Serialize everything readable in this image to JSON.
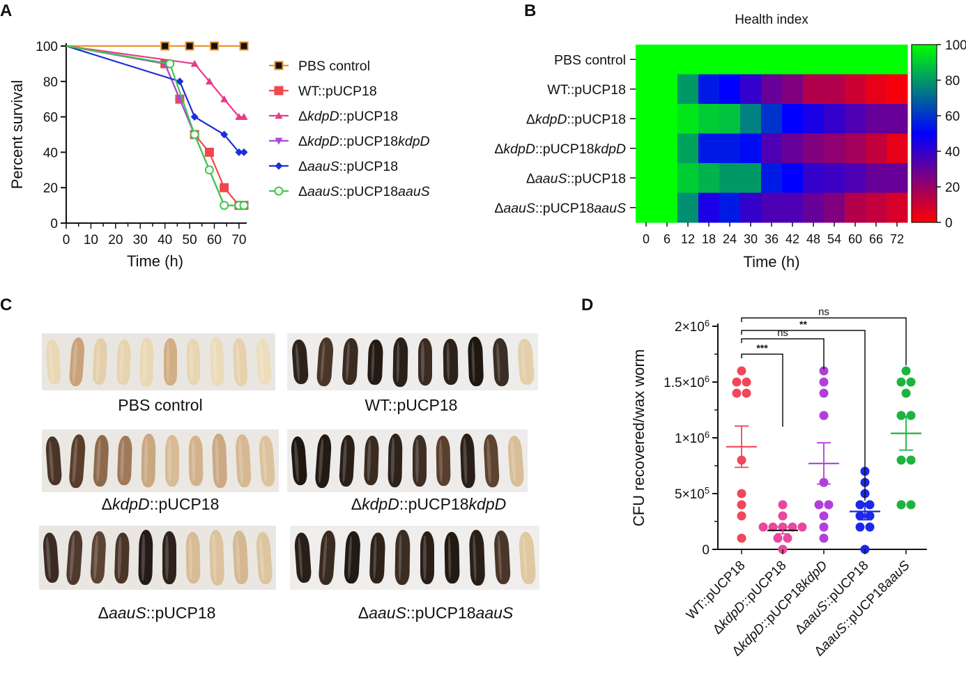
{
  "panels": {
    "a": "A",
    "b": "B",
    "c": "C",
    "d": "D"
  },
  "chart_data": [
    {
      "type": "line",
      "panel": "A",
      "xlabel": "Time (h)",
      "ylabel": "Percent survival",
      "xlim": [
        0,
        72
      ],
      "ylim": [
        0,
        100
      ],
      "xticks": [
        0,
        10,
        20,
        30,
        40,
        50,
        60,
        70
      ],
      "yticks": [
        0,
        20,
        40,
        60,
        80,
        100
      ],
      "legend_position": "right",
      "series": [
        {
          "name": "PBS control",
          "label_parts": [
            {
              "t": "PBS control"
            }
          ],
          "color": "#E8942A",
          "marker": "square-filled",
          "x": [
            0,
            40,
            50,
            60,
            72
          ],
          "y": [
            100,
            100,
            100,
            100,
            100
          ]
        },
        {
          "name": "WT::pUCP18",
          "label_parts": [
            {
              "t": "WT::pUCP18"
            }
          ],
          "color": "#F0474E",
          "marker": "square",
          "x": [
            0,
            40,
            46,
            52,
            58,
            64,
            70,
            72
          ],
          "y": [
            100,
            90,
            70,
            50,
            40,
            20,
            10,
            10
          ]
        },
        {
          "name": "ΔkdpD::pUCP18",
          "label_parts": [
            {
              "t": "Δ"
            },
            {
              "t": "kdpD",
              "i": true
            },
            {
              "t": "::pUCP18"
            }
          ],
          "color": "#E8398A",
          "marker": "triangle-up",
          "x": [
            0,
            52,
            58,
            64,
            70,
            72
          ],
          "y": [
            100,
            90,
            80,
            70,
            60,
            60
          ]
        },
        {
          "name": "ΔkdpD::pUCP18kdpD",
          "label_parts": [
            {
              "t": "Δ"
            },
            {
              "t": "kdpD",
              "i": true
            },
            {
              "t": "::pUCP18"
            },
            {
              "t": "kdpD",
              "i": true
            }
          ],
          "color": "#A64BD6",
          "marker": "triangle-down",
          "x": [
            0,
            40,
            46,
            52,
            58,
            64,
            70,
            72
          ],
          "y": [
            100,
            90,
            70,
            50,
            30,
            10,
            10,
            10
          ]
        },
        {
          "name": "ΔaauS::pUCP18",
          "label_parts": [
            {
              "t": "Δ"
            },
            {
              "t": "aauS",
              "i": true
            },
            {
              "t": "::pUCP18"
            }
          ],
          "color": "#1C2FD6",
          "marker": "diamond",
          "x": [
            0,
            46,
            52,
            64,
            70,
            72
          ],
          "y": [
            100,
            80,
            60,
            50,
            40,
            40
          ]
        },
        {
          "name": "ΔaauS::pUCP18aauS",
          "label_parts": [
            {
              "t": "Δ"
            },
            {
              "t": "aauS",
              "i": true
            },
            {
              "t": "::pUCP18"
            },
            {
              "t": "aauS",
              "i": true
            }
          ],
          "color": "#3CC94B",
          "marker": "circle-open",
          "x": [
            0,
            42,
            52,
            58,
            64,
            70,
            72
          ],
          "y": [
            100,
            90,
            50,
            30,
            10,
            10,
            10
          ]
        }
      ]
    },
    {
      "type": "heatmap",
      "panel": "B",
      "title": "Health index",
      "xlabel": "Time (h)",
      "x": [
        0,
        6,
        12,
        18,
        24,
        30,
        36,
        42,
        48,
        54,
        60,
        66,
        72
      ],
      "rows": [
        {
          "label_parts": [
            {
              "t": "PBS control"
            }
          ],
          "values": [
            100,
            100,
            100,
            100,
            100,
            100,
            100,
            100,
            100,
            100,
            100,
            100,
            100
          ]
        },
        {
          "label_parts": [
            {
              "t": "WT::pUCP18"
            }
          ],
          "values": [
            100,
            100,
            80,
            55,
            50,
            40,
            30,
            25,
            15,
            15,
            10,
            5,
            2
          ]
        },
        {
          "label_parts": [
            {
              "t": "Δ"
            },
            {
              "t": "kdpD",
              "i": true
            },
            {
              "t": "::pUCP18"
            }
          ],
          "values": [
            100,
            100,
            95,
            90,
            88,
            75,
            60,
            50,
            45,
            40,
            35,
            30,
            30
          ]
        },
        {
          "label_parts": [
            {
              "t": "Δ"
            },
            {
              "t": "kdpD",
              "i": true
            },
            {
              "t": "::pUCP18"
            },
            {
              "t": "kdpD",
              "i": true
            }
          ],
          "values": [
            100,
            100,
            82,
            55,
            55,
            52,
            35,
            30,
            25,
            22,
            18,
            12,
            5
          ]
        },
        {
          "label_parts": [
            {
              "t": "Δ"
            },
            {
              "t": "aauS",
              "i": true
            },
            {
              "t": "::pUCP18"
            }
          ],
          "values": [
            100,
            100,
            90,
            85,
            80,
            80,
            55,
            50,
            40,
            38,
            35,
            30,
            30
          ]
        },
        {
          "label_parts": [
            {
              "t": "Δ"
            },
            {
              "t": "aauS",
              "i": true
            },
            {
              "t": "::pUCP18"
            },
            {
              "t": "aauS",
              "i": true
            }
          ],
          "values": [
            100,
            100,
            78,
            45,
            55,
            40,
            35,
            35,
            30,
            25,
            15,
            12,
            8
          ]
        }
      ],
      "colorbar": {
        "range": [
          0,
          100
        ],
        "ticks": [
          0,
          20,
          40,
          60,
          80,
          100
        ],
        "colors": [
          "#FF0000",
          "#0000FF",
          "#00FF00"
        ]
      }
    },
    {
      "type": "scatter",
      "panel": "D",
      "ylabel": "CFU recovered/wax worm",
      "ylim": [
        0,
        2000000
      ],
      "yticks": [
        {
          "v": 0,
          "label": [
            {
              "t": "0"
            }
          ]
        },
        {
          "v": 500000,
          "label": [
            {
              "t": "5×10"
            },
            {
              "t": "5",
              "sup": true
            }
          ]
        },
        {
          "v": 1000000,
          "label": [
            {
              "t": "1×10"
            },
            {
              "t": "6",
              "sup": true
            }
          ]
        },
        {
          "v": 1500000,
          "label": [
            {
              "t": "1.5×10"
            },
            {
              "t": "6",
              "sup": true
            }
          ]
        },
        {
          "v": 2000000,
          "label": [
            {
              "t": "2×10"
            },
            {
              "t": "6",
              "sup": true
            }
          ]
        }
      ],
      "groups": [
        {
          "label_parts": [
            {
              "t": "WT::pUCP18"
            }
          ],
          "color": "#F0475A",
          "mean": 920000,
          "sem": 185000,
          "values": [
            1600000,
            1500000,
            1500000,
            1400000,
            1400000,
            800000,
            500000,
            400000,
            300000,
            100000
          ]
        },
        {
          "label_parts": [
            {
              "t": "Δ"
            },
            {
              "t": "kdpD",
              "i": true
            },
            {
              "t": "::pUCP18"
            }
          ],
          "color": "#E8489E",
          "mean": 170000,
          "sem": 30000,
          "values": [
            400000,
            300000,
            200000,
            200000,
            200000,
            200000,
            200000,
            100000,
            100000,
            0
          ]
        },
        {
          "label_parts": [
            {
              "t": "Δ"
            },
            {
              "t": "kdpD",
              "i": true
            },
            {
              "t": "::pUCP18"
            },
            {
              "t": "kdpD",
              "i": true
            }
          ],
          "color": "#B23FD8",
          "mean": 770000,
          "sem": 185000,
          "values": [
            1600000,
            1500000,
            1400000,
            1200000,
            600000,
            400000,
            400000,
            300000,
            200000,
            100000
          ]
        },
        {
          "label_parts": [
            {
              "t": "Δ"
            },
            {
              "t": "aauS",
              "i": true
            },
            {
              "t": "::pUCP18"
            }
          ],
          "color": "#1C28E8",
          "mean": 340000,
          "sem": 75000,
          "values": [
            700000,
            600000,
            500000,
            400000,
            400000,
            300000,
            300000,
            200000,
            200000,
            0
          ]
        },
        {
          "label_parts": [
            {
              "t": "Δ"
            },
            {
              "t": "aauS",
              "i": true
            },
            {
              "t": "::pUCP18"
            },
            {
              "t": "aauS",
              "i": true
            }
          ],
          "color": "#1DB33F",
          "mean": 1040000,
          "sem": 150000,
          "values": [
            1600000,
            1500000,
            1500000,
            1400000,
            1200000,
            1200000,
            800000,
            800000,
            400000,
            400000
          ]
        }
      ],
      "comparisons": [
        {
          "from": 0,
          "to": 1,
          "label": "***"
        },
        {
          "from": 0,
          "to": 2,
          "label": "ns"
        },
        {
          "from": 0,
          "to": 3,
          "label": "**"
        },
        {
          "from": 0,
          "to": 4,
          "label": "ns"
        }
      ]
    }
  ],
  "photos": [
    {
      "caption_parts": [
        {
          "t": "PBS control"
        }
      ],
      "larvae": [
        "#EAD7B5",
        "#C9A279",
        "#E4CFA9",
        "#E7D3AE",
        "#E9D8B4",
        "#D2AE84",
        "#E8D6B0",
        "#EBDBB8",
        "#E6D1AC",
        "#ECDDBC"
      ]
    },
    {
      "caption_parts": [
        {
          "t": "WT::pUCP18"
        }
      ],
      "larvae": [
        "#2E231C",
        "#4A3628",
        "#3A2B21",
        "#231A14",
        "#2A201A",
        "#3A2C22",
        "#2C211B",
        "#1E1712",
        "#3A2E26",
        "#E3CFAA"
      ]
    },
    {
      "caption_parts": [
        {
          "t": "Δ"
        },
        {
          "t": "kdpD",
          "i": true
        },
        {
          "t": "::pUCP18"
        }
      ],
      "larvae": [
        "#4A3426",
        "#5A3E2C",
        "#8E6A4C",
        "#A07A58",
        "#C9A880",
        "#D8BC95",
        "#D2B28A",
        "#CBA984",
        "#D6B993",
        "#DCC29C"
      ]
    },
    {
      "caption_parts": [
        {
          "t": "Δ"
        },
        {
          "t": "kdpD",
          "i": true
        },
        {
          "t": "::pUCP18"
        },
        {
          "t": "kdpD",
          "i": true
        }
      ],
      "larvae": [
        "#1F1712",
        "#231A14",
        "#2A1F18",
        "#3A2A20",
        "#2E231C",
        "#3E2E23",
        "#5A3F2D",
        "#2A1F18",
        "#5E4330",
        "#D8BE96"
      ]
    },
    {
      "caption_parts": [
        {
          "t": "Δ"
        },
        {
          "t": "aauS",
          "i": true
        },
        {
          "t": "::pUCP18"
        }
      ],
      "larvae": [
        "#3B2B22",
        "#4E3A2D",
        "#5C4334",
        "#4A3527",
        "#241B16",
        "#2E221B",
        "#D7BC94",
        "#DCC39D",
        "#D5B891",
        "#DDC5A0"
      ]
    },
    {
      "caption_parts": [
        {
          "t": "Δ"
        },
        {
          "t": "aauS",
          "i": true
        },
        {
          "t": "::pUCP18"
        },
        {
          "t": "aauS",
          "i": true
        }
      ],
      "larvae": [
        "#2A1F18",
        "#3A2B21",
        "#221A14",
        "#2E221B",
        "#3C2D22",
        "#2A1F18",
        "#231A14",
        "#2A1F18",
        "#4A3628",
        "#E0C8A2"
      ]
    }
  ]
}
